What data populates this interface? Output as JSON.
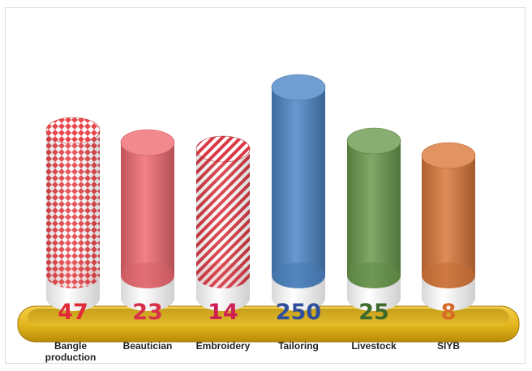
{
  "chart_data": {
    "type": "bar",
    "style": "3d-cylinder",
    "categories": [
      "Bangle production",
      "Beautician",
      "Embroidery",
      "Tailoring",
      "Livestock",
      "SIYB"
    ],
    "values": [
      47,
      23,
      14,
      250,
      25,
      8
    ],
    "value_labels": [
      "47",
      "23",
      "14",
      "250",
      "25",
      "8"
    ],
    "category_label_lines": [
      [
        "Bangle",
        "production"
      ],
      [
        "Beautician"
      ],
      [
        "Embroidery"
      ],
      [
        "Tailoring"
      ],
      [
        "Livestock"
      ],
      [
        "SIYB"
      ]
    ],
    "fills": [
      "dotted-pattern",
      "solid",
      "diagonal-stripes",
      "solid",
      "solid",
      "solid"
    ],
    "colors": [
      "#e8474d",
      "#ef6b72",
      "#d93a45",
      "#4d86c6",
      "#6b9a4e",
      "#d9783a"
    ],
    "label_colors": [
      "#e02a3a",
      "#d8304a",
      "#cf1f55",
      "#2f4f9a",
      "#3d6a2a",
      "#d86a28"
    ],
    "title": "",
    "xlabel": "",
    "ylabel": "",
    "grid": false,
    "legend": "none",
    "base_color": "#e2b41c"
  }
}
